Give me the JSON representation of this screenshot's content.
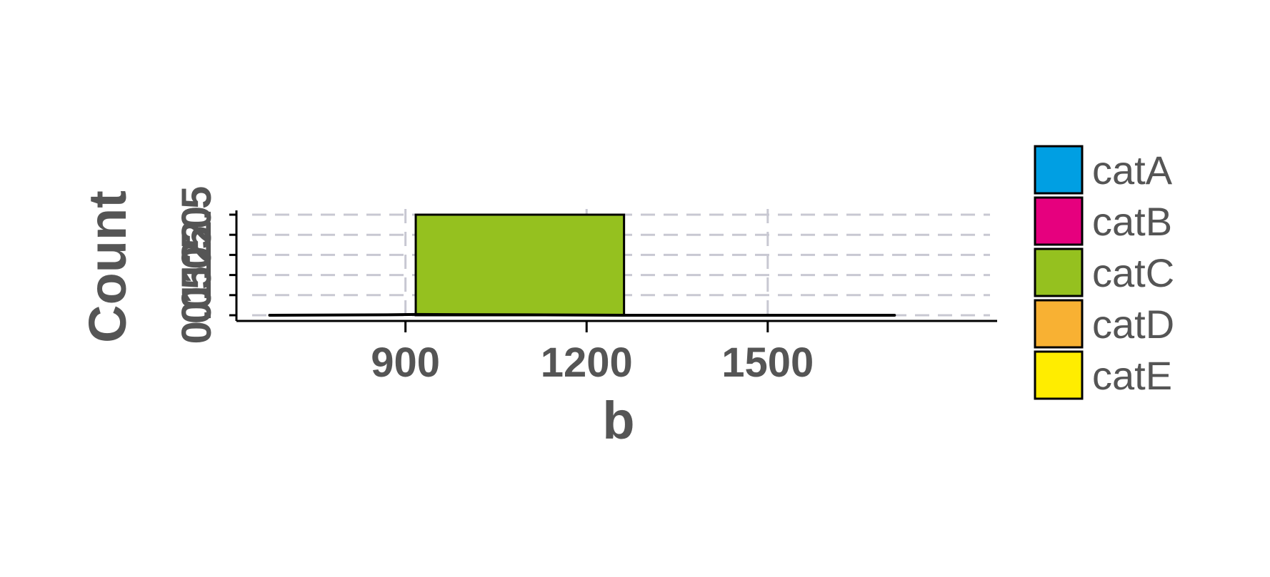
{
  "chart_data": {
    "type": "bar",
    "title": "",
    "xlabel": "b",
    "ylabel": "Count",
    "x_ticks": [
      900,
      1200,
      1500
    ],
    "y_ticks": [
      "0.0",
      "0.5",
      "1.0",
      "1.5",
      "2.0",
      "2.5"
    ],
    "xlim": [
      620,
      1880
    ],
    "ylim": [
      0,
      2.5
    ],
    "grid": true,
    "legend_position": "right",
    "bins": [
      {
        "x0": 917,
        "x1": 1262,
        "count": 2.5,
        "category": "catC"
      }
    ],
    "density_line": [
      [
        675,
        0
      ],
      [
        870,
        0.01
      ],
      [
        917,
        0.02
      ],
      [
        1100,
        0.01
      ],
      [
        1262,
        0.0
      ],
      [
        1710,
        0
      ]
    ],
    "legend": [
      {
        "label": "catA",
        "color": "#009FE3"
      },
      {
        "label": "catB",
        "color": "#E6007E"
      },
      {
        "label": "catC",
        "color": "#95C11F"
      },
      {
        "label": "catD",
        "color": "#F8B133"
      },
      {
        "label": "catE",
        "color": "#FFED00"
      }
    ]
  }
}
